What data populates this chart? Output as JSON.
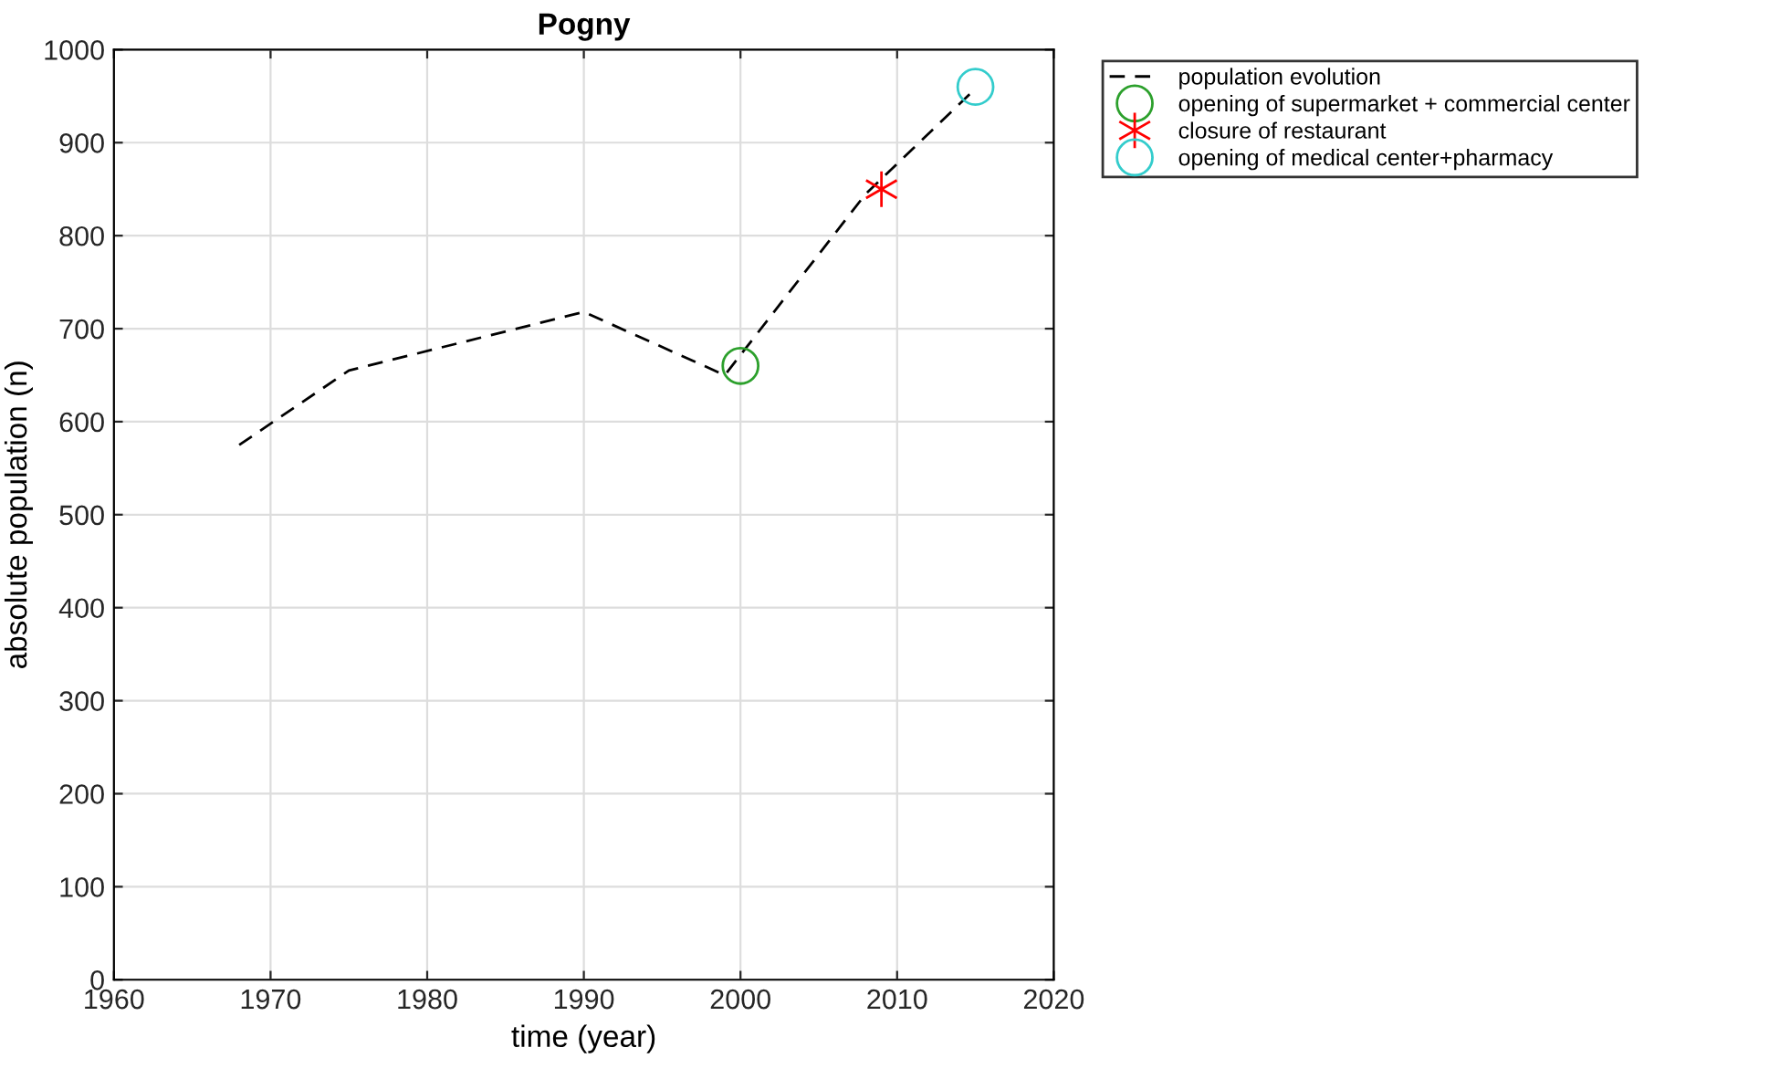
{
  "chart_data": {
    "type": "line",
    "title": "Pogny",
    "xlabel": "time (year)",
    "ylabel": "absolute population (n)",
    "xlim": [
      1960,
      2020
    ],
    "xticks": [
      1960,
      1970,
      1980,
      1990,
      2000,
      2010,
      2020
    ],
    "ylim": [
      0,
      1000
    ],
    "yticks": [
      0,
      100,
      200,
      300,
      400,
      500,
      600,
      700,
      800,
      900,
      1000
    ],
    "grid": true,
    "legend": "top right",
    "series": [
      {
        "name": "population evolution",
        "color": "#000000",
        "line_style": "dashed",
        "marker": "none",
        "x": [
          1968,
          1975,
          1990,
          1999,
          2008,
          2015
        ],
        "values": [
          575,
          655,
          718,
          650,
          845,
          958
        ]
      },
      {
        "name": "opening of supermarket + commercial center",
        "type": "scatter",
        "color": "#2ca02c",
        "marker": "circle",
        "x": [
          2000
        ],
        "values": [
          660
        ]
      },
      {
        "name": "closure of restaurant",
        "type": "scatter",
        "color": "#ff0000",
        "marker": "cross",
        "x": [
          2009
        ],
        "values": [
          850
        ]
      },
      {
        "name": "opening of medical center+pharmacy",
        "type": "scatter",
        "color": "#33cccc",
        "marker": "circle",
        "x": [
          2015
        ],
        "values": [
          960
        ]
      }
    ]
  }
}
